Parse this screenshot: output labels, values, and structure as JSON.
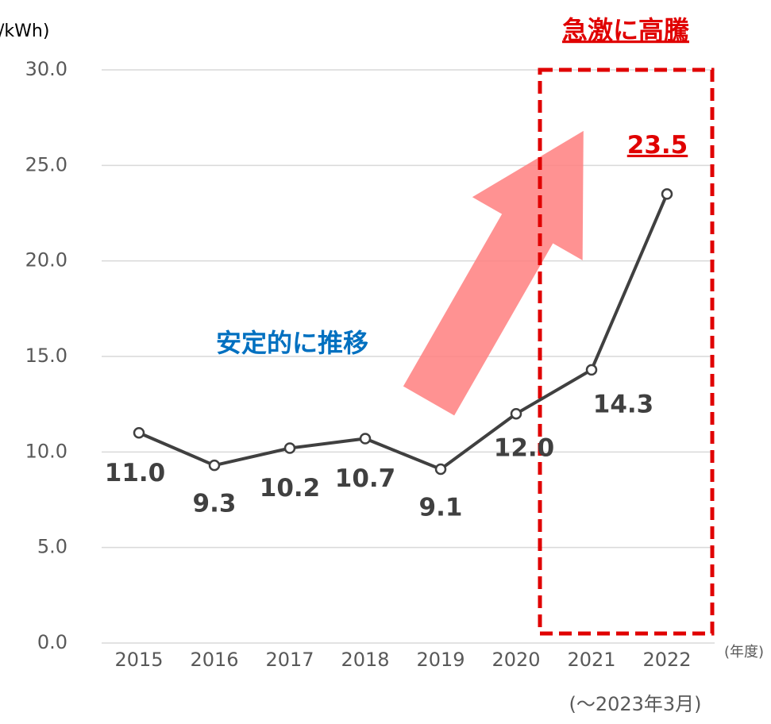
{
  "chart_data": {
    "type": "line",
    "y_axis_label": "/kWh)",
    "x_axis_label": "(年度)",
    "x_note": "(～2023年3月)",
    "annotations": [
      "急激に高騰",
      "安定的に推移"
    ],
    "categories": [
      "2015",
      "2016",
      "2017",
      "2018",
      "2019",
      "2020",
      "2021",
      "2022"
    ],
    "series": [
      {
        "color": "#404040",
        "values": [
          11.0,
          9.3,
          10.2,
          10.7,
          9.1,
          12.0,
          14.3,
          23.5
        ],
        "value_labels": [
          "11.0",
          "9.3",
          "10.2",
          "10.7",
          "9.1",
          "12.0",
          "14.3",
          "23.5"
        ]
      }
    ],
    "ylim": [
      0,
      30
    ],
    "yticks": [
      {
        "value": 0,
        "label": "0.0"
      },
      {
        "value": 5,
        "label": "5.0"
      },
      {
        "value": 10,
        "label": "10.0"
      },
      {
        "value": 15,
        "label": "15.0"
      },
      {
        "value": 20,
        "label": "20.0"
      },
      {
        "value": 25,
        "label": "25.0"
      },
      {
        "value": 30,
        "label": "30.0"
      }
    ],
    "grid": true
  }
}
